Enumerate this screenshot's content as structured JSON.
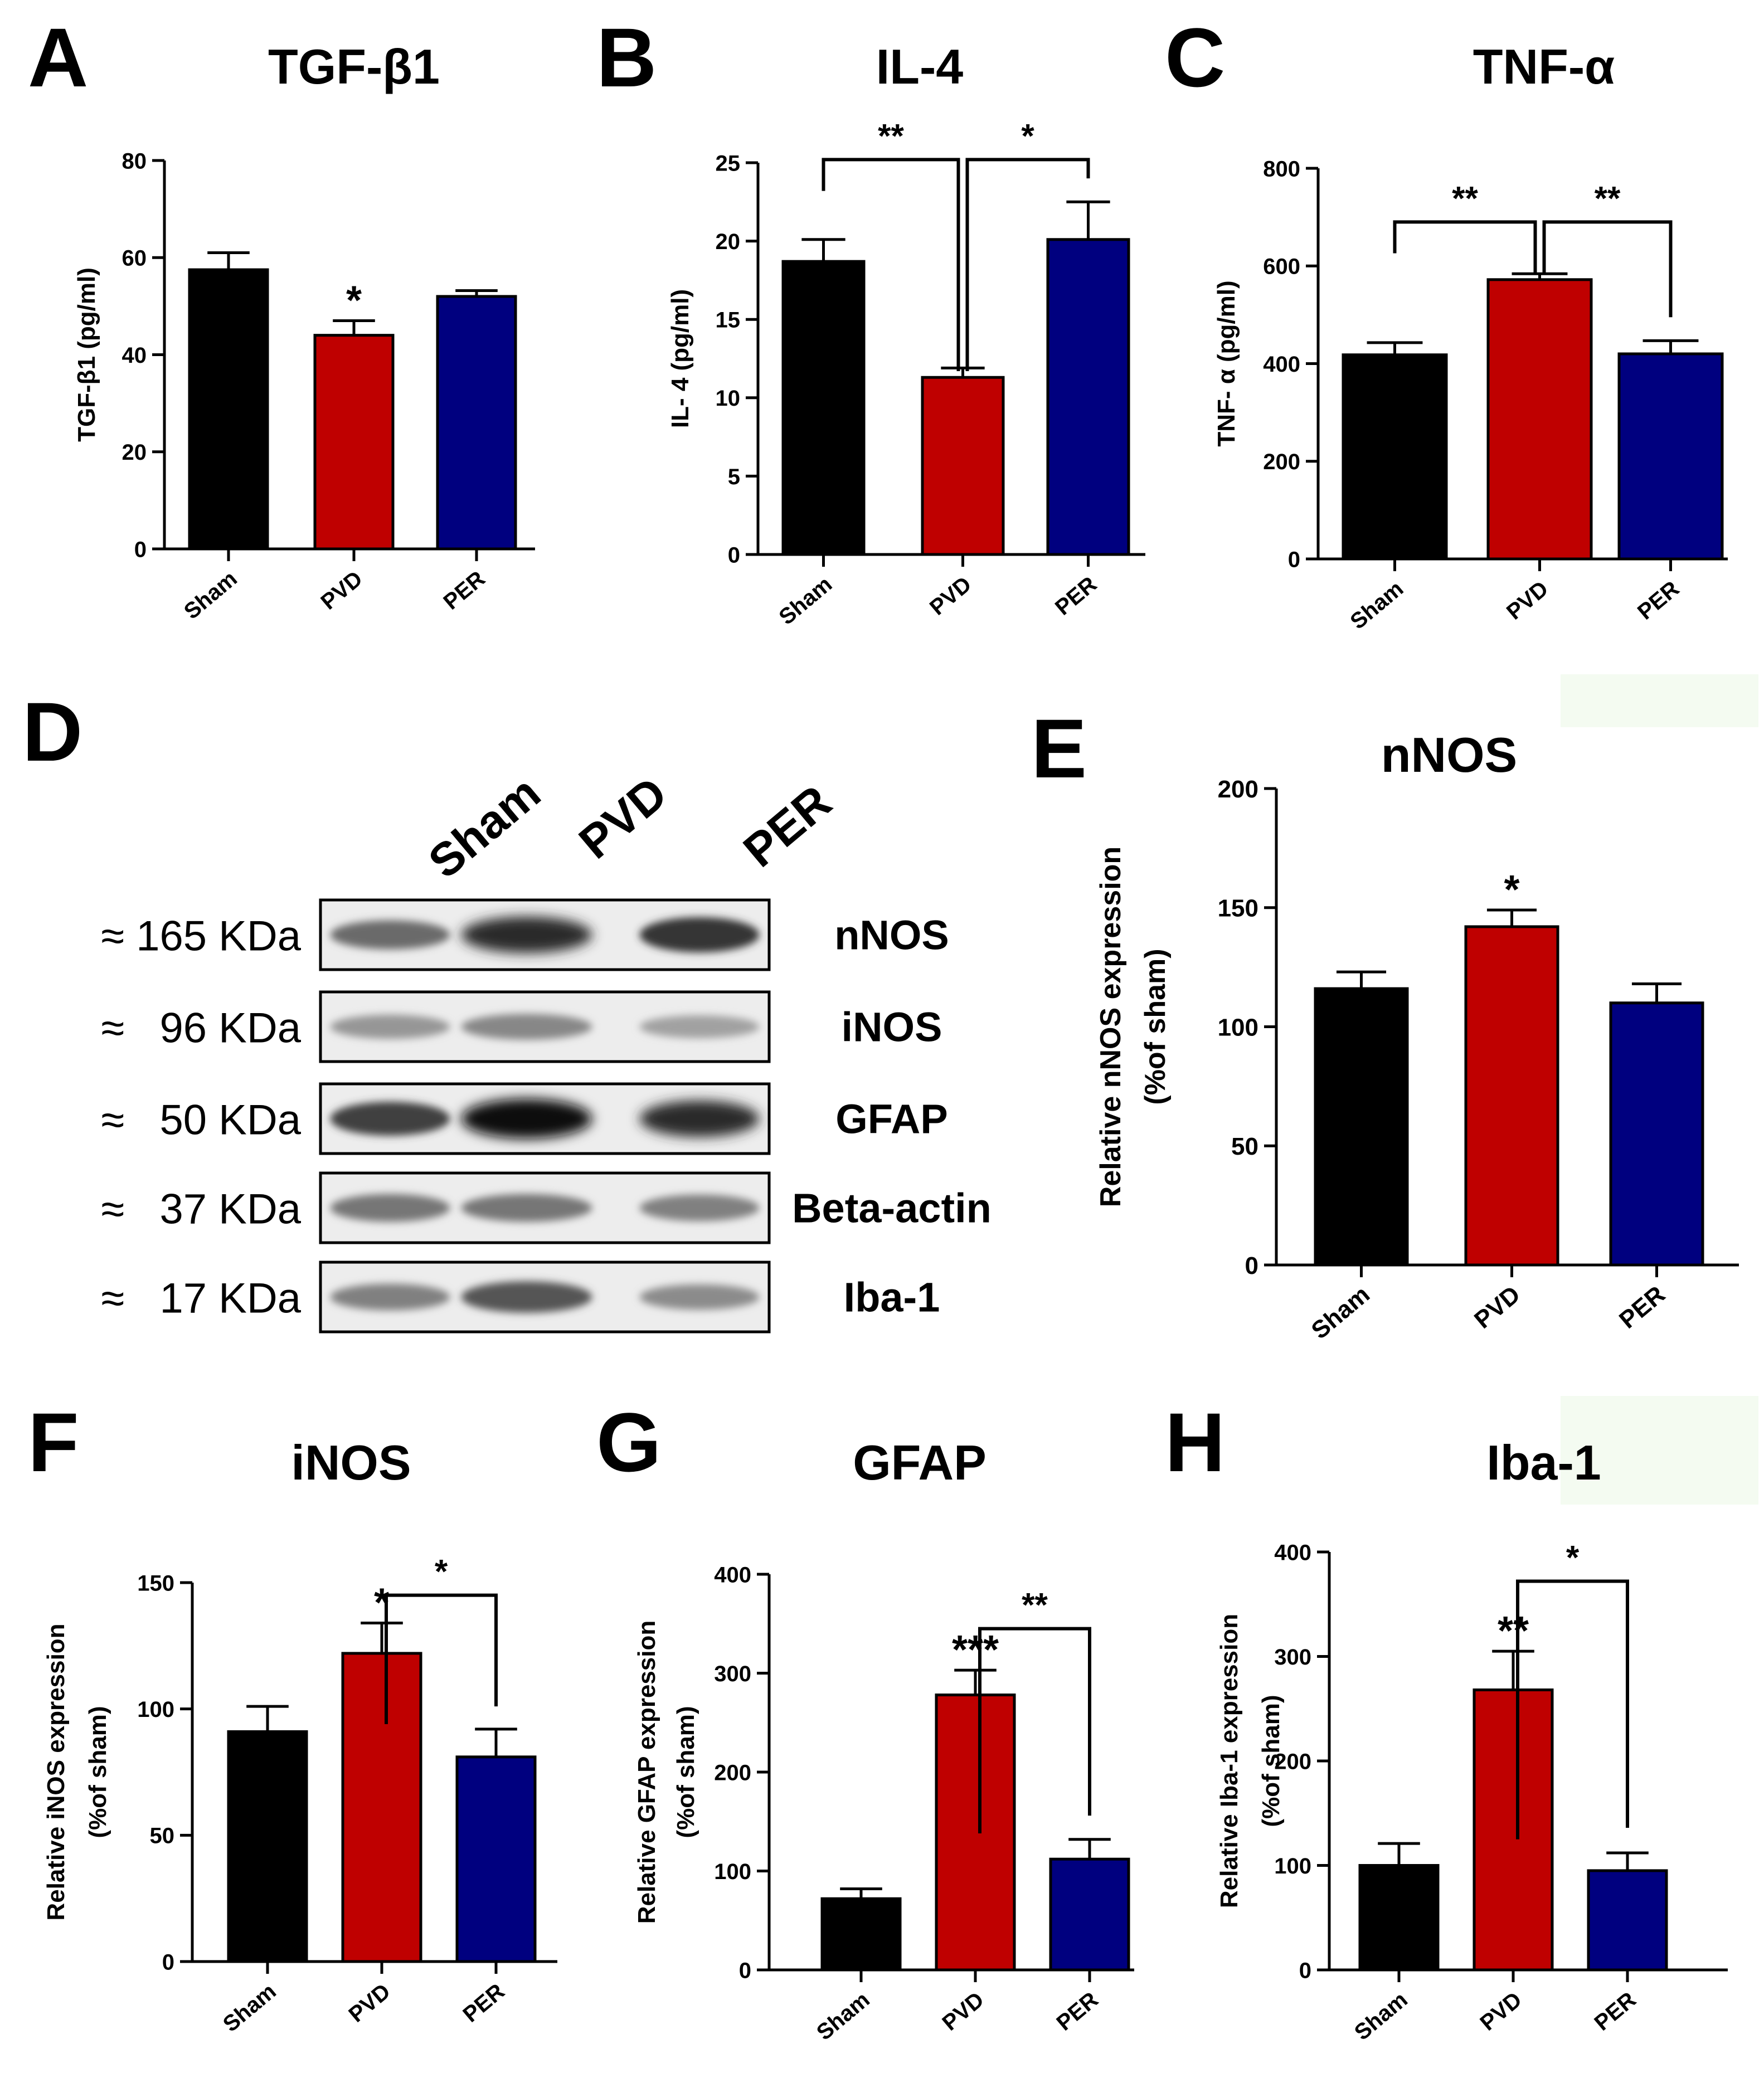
{
  "colors": {
    "sham": "#000000",
    "pvd": "#bf0000",
    "per": "#00007f"
  },
  "chart_data": [
    {
      "panel": "A",
      "type": "bar",
      "title": "TGF-β1",
      "ylabel": "TGF-β1 (pg/ml)",
      "categories": [
        "Sham",
        "PVD",
        "PER"
      ],
      "values": [
        57.5,
        44,
        52
      ],
      "errors": [
        3.5,
        3,
        1.2
      ],
      "ylim": [
        0,
        80
      ],
      "yticks": [
        0,
        20,
        40,
        60,
        80
      ],
      "stars": [
        {
          "index": 1,
          "text": "*"
        }
      ],
      "brackets": []
    },
    {
      "panel": "B",
      "type": "bar",
      "title": "IL-4",
      "ylabel": "IL- 4 (pg/ml)",
      "categories": [
        "Sham",
        "PVD",
        "PER"
      ],
      "values": [
        18.7,
        11.3,
        20.1
      ],
      "errors": [
        1.4,
        0.6,
        2.4
      ],
      "ylim": [
        0,
        25
      ],
      "yticks": [
        0,
        5,
        10,
        15,
        20,
        25
      ],
      "stars": [],
      "brackets": [
        {
          "from": 0,
          "to": 1,
          "level": 25.2,
          "drop": 11.7,
          "text": "**"
        },
        {
          "from": 1,
          "to": 2,
          "level": 25.2,
          "drop": 11.7,
          "text": "*"
        }
      ]
    },
    {
      "panel": "C",
      "type": "bar",
      "title": "TNF-α",
      "ylabel": "TNF- α (pg/ml)",
      "categories": [
        "Sham",
        "PVD",
        "PER"
      ],
      "values": [
        418,
        572,
        420
      ],
      "errors": [
        25,
        12,
        27
      ],
      "ylim": [
        0,
        800
      ],
      "yticks": [
        0,
        200,
        400,
        600,
        800
      ],
      "stars": [],
      "brackets": [
        {
          "from": 0,
          "to": 1,
          "level": 690,
          "drop": 585,
          "text": "**"
        },
        {
          "from": 1,
          "to": 2,
          "level": 690,
          "drop": 585,
          "text": "**"
        }
      ]
    },
    {
      "panel": "E",
      "type": "bar",
      "title": "nNOS",
      "ylabel": "Relative nNOS expression",
      "ylabel2": "(%of sham)",
      "categories": [
        "Sham",
        "PVD",
        "PER"
      ],
      "values": [
        116,
        142,
        110
      ],
      "errors": [
        7,
        7,
        8
      ],
      "ylim": [
        0,
        200
      ],
      "yticks": [
        0,
        50,
        100,
        150,
        200
      ],
      "stars": [
        {
          "index": 1,
          "text": "*"
        }
      ],
      "brackets": []
    },
    {
      "panel": "F",
      "type": "bar",
      "title": "iNOS",
      "ylabel": "Relative iNOS expression",
      "ylabel2": "(%of sham)",
      "categories": [
        "Sham",
        "PVD",
        "PER"
      ],
      "values": [
        91,
        122,
        81
      ],
      "errors": [
        10,
        12,
        11
      ],
      "ylim": [
        0,
        150
      ],
      "yticks": [
        0,
        50,
        100,
        150
      ],
      "stars": [
        {
          "index": 1,
          "text": "*"
        }
      ],
      "brackets": [
        {
          "from": 1,
          "to": 2,
          "level": 145,
          "drop": 94,
          "text": "*"
        }
      ]
    },
    {
      "panel": "G",
      "type": "bar",
      "title": "GFAP",
      "ylabel": "Relative GFAP expression",
      "ylabel2": "(%of sham)",
      "categories": [
        "Sham",
        "PVD",
        "PER"
      ],
      "values": [
        72,
        278,
        112
      ],
      "errors": [
        10,
        25,
        20
      ],
      "ylim": [
        0,
        400
      ],
      "yticks": [
        0,
        100,
        200,
        300,
        400
      ],
      "stars": [
        {
          "index": 1,
          "text": "***"
        }
      ],
      "brackets": [
        {
          "from": 1,
          "to": 2,
          "level": 345,
          "drop": 138,
          "text": "**"
        }
      ]
    },
    {
      "panel": "H",
      "type": "bar",
      "title": "Iba-1",
      "ylabel": "Relative Iba-1 expression",
      "ylabel2": "(%of sham)",
      "categories": [
        "Sham",
        "PVD",
        "PER"
      ],
      "values": [
        100,
        268,
        95
      ],
      "errors": [
        21,
        37,
        17
      ],
      "ylim": [
        0,
        400
      ],
      "yticks": [
        0,
        100,
        200,
        300,
        400
      ],
      "stars": [
        {
          "index": 1,
          "text": "**"
        }
      ],
      "brackets": [
        {
          "from": 1,
          "to": 2,
          "level": 372,
          "drop": 125,
          "text": "*"
        }
      ]
    }
  ],
  "blot": {
    "panel": "D",
    "lanes": [
      "Sham",
      "PVD",
      "PER"
    ],
    "rows": [
      {
        "marker": "≈ 165 KDa",
        "protein": "nNOS",
        "intensity": [
          0.55,
          0.85,
          0.8
        ]
      },
      {
        "marker": "≈   96 KDa",
        "protein": "iNOS",
        "intensity": [
          0.35,
          0.42,
          0.3
        ]
      },
      {
        "marker": "≈   50 KDa",
        "protein": "GFAP",
        "intensity": [
          0.75,
          1.0,
          0.85
        ]
      },
      {
        "marker": "≈   37 KDa",
        "protein": "Beta-actin",
        "intensity": [
          0.5,
          0.5,
          0.45
        ]
      },
      {
        "marker": "≈   17 KDa",
        "protein": "Iba-1",
        "intensity": [
          0.45,
          0.65,
          0.4
        ]
      }
    ]
  }
}
